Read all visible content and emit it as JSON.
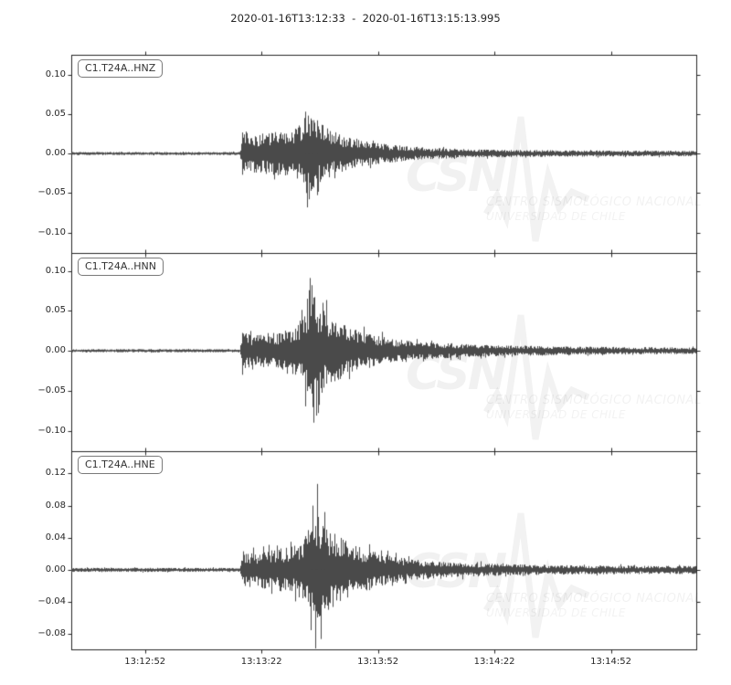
{
  "title": "2020-01-16T13:12:33  -  2020-01-16T13:15:13.995",
  "colors": {
    "trace": "#4a4a4a",
    "axis": "#262626",
    "tick_label": "#262626",
    "background": "#ffffff",
    "watermark": "rgba(0,0,0,0.055)"
  },
  "watermark": {
    "acronym": "CSN",
    "line1": "CENTRO SISMOLÓGICO NACIONAL",
    "line2": "UNIVERSIDAD DE CHILE"
  },
  "x_axis": {
    "start_time": "2020-01-16T13:12:33",
    "end_time": "2020-01-16T13:15:13.995",
    "duration_s": 160.995,
    "tick_labels": [
      "13:12:52",
      "13:13:22",
      "13:13:52",
      "13:14:22",
      "13:14:52"
    ],
    "tick_offsets_s": [
      19,
      49,
      79,
      109,
      139
    ]
  },
  "chart_data": {
    "type": "line",
    "kind": "seismogram-3panel",
    "title": "2020-01-16T13:12:33 - 2020-01-16T13:15:13.995",
    "x_start": "2020-01-16T13:12:33",
    "x_end": "2020-01-16T13:15:13.995",
    "grid": false,
    "panels": [
      {
        "label": "C1.T24A..HNZ",
        "yticks": [
          0.1,
          0.05,
          0.0,
          -0.05,
          -0.1
        ],
        "ytick_labels": [
          "0.10",
          "0.05",
          "0.00",
          "−0.05",
          "−0.10"
        ],
        "ylim": [
          -0.126,
          0.125
        ],
        "onset_s": 43.8,
        "peak": {
          "t_s": 60.5,
          "max": 0.053,
          "min": -0.058
        },
        "pre_event_noise": 0.002,
        "envelope": [
          [
            0,
            0.002
          ],
          [
            43.5,
            0.002
          ],
          [
            44.2,
            0.03
          ],
          [
            47,
            0.024
          ],
          [
            50,
            0.026
          ],
          [
            54,
            0.028
          ],
          [
            57,
            0.03
          ],
          [
            59,
            0.038
          ],
          [
            60.5,
            0.052
          ],
          [
            62,
            0.048
          ],
          [
            63.5,
            0.042
          ],
          [
            66,
            0.032
          ],
          [
            69,
            0.025
          ],
          [
            73,
            0.019
          ],
          [
            78,
            0.014
          ],
          [
            85,
            0.01
          ],
          [
            93,
            0.007
          ],
          [
            103,
            0.0055
          ],
          [
            115,
            0.0045
          ],
          [
            130,
            0.004
          ],
          [
            161,
            0.0035
          ]
        ],
        "spikes": [
          [
            60.3,
            0.053
          ],
          [
            61.1,
            -0.058
          ],
          [
            60.9,
            0.048
          ],
          [
            63.2,
            0.042
          ],
          [
            61.8,
            -0.045
          ]
        ],
        "seed": 11
      },
      {
        "label": "C1.T24A..HNN",
        "yticks": [
          0.1,
          0.05,
          0.0,
          -0.05,
          -0.1
        ],
        "ytick_labels": [
          "0.10",
          "0.05",
          "0.00",
          "−0.05",
          "−0.10"
        ],
        "ylim": [
          -0.1257,
          0.1223
        ],
        "onset_s": 43.8,
        "peak": {
          "t_s": 61.6,
          "max": 0.091,
          "min": -0.09
        },
        "pre_event_noise": 0.002,
        "envelope": [
          [
            0,
            0.002
          ],
          [
            43.5,
            0.002
          ],
          [
            44.2,
            0.026
          ],
          [
            46.5,
            0.019
          ],
          [
            49,
            0.021
          ],
          [
            51.5,
            0.026
          ],
          [
            53,
            0.022
          ],
          [
            55.5,
            0.026
          ],
          [
            58,
            0.031
          ],
          [
            60,
            0.052
          ],
          [
            61.5,
            0.08
          ],
          [
            62.7,
            0.075
          ],
          [
            64,
            0.058
          ],
          [
            66,
            0.047
          ],
          [
            68.5,
            0.038
          ],
          [
            71,
            0.031
          ],
          [
            74,
            0.025
          ],
          [
            78,
            0.02
          ],
          [
            83,
            0.015
          ],
          [
            90,
            0.011
          ],
          [
            98,
            0.009
          ],
          [
            108,
            0.007
          ],
          [
            120,
            0.006
          ],
          [
            135,
            0.005
          ],
          [
            150,
            0.0045
          ],
          [
            161,
            0.004
          ]
        ],
        "spikes": [
          [
            61.4,
            0.091
          ],
          [
            62.3,
            -0.09
          ],
          [
            62.0,
            0.082
          ],
          [
            63.5,
            -0.078
          ],
          [
            60.8,
            0.065
          ],
          [
            64.8,
            0.06
          ]
        ],
        "seed": 22
      },
      {
        "label": "C1.T24A..HNE",
        "yticks": [
          0.12,
          0.08,
          0.04,
          0.0,
          -0.04,
          -0.08
        ],
        "ytick_labels": [
          "0.12",
          "0.08",
          "0.04",
          "0.00",
          "−0.04",
          "−0.08"
        ],
        "ylim": [
          -0.0989,
          0.1477
        ],
        "onset_s": 43.8,
        "peak": {
          "t_s": 63.5,
          "max": 0.107,
          "min": -0.098
        },
        "pre_event_noise": 0.0025,
        "envelope": [
          [
            0,
            0.0025
          ],
          [
            43.5,
            0.0025
          ],
          [
            44.2,
            0.024
          ],
          [
            47,
            0.021
          ],
          [
            50,
            0.024
          ],
          [
            53,
            0.026
          ],
          [
            56,
            0.028
          ],
          [
            58.5,
            0.033
          ],
          [
            60.5,
            0.046
          ],
          [
            62,
            0.065
          ],
          [
            63.5,
            0.068
          ],
          [
            65,
            0.055
          ],
          [
            67,
            0.048
          ],
          [
            69.5,
            0.04
          ],
          [
            72,
            0.034
          ],
          [
            75,
            0.028
          ],
          [
            79,
            0.022
          ],
          [
            84,
            0.016
          ],
          [
            90,
            0.012
          ],
          [
            97,
            0.0095
          ],
          [
            106,
            0.008
          ],
          [
            118,
            0.0065
          ],
          [
            135,
            0.0055
          ],
          [
            161,
            0.005
          ]
        ],
        "spikes": [
          [
            63.4,
            0.107
          ],
          [
            62.8,
            -0.098
          ],
          [
            62.2,
            0.08
          ],
          [
            64.3,
            -0.086
          ],
          [
            65.2,
            0.072
          ],
          [
            61.6,
            -0.075
          ]
        ],
        "seed": 33
      }
    ]
  }
}
